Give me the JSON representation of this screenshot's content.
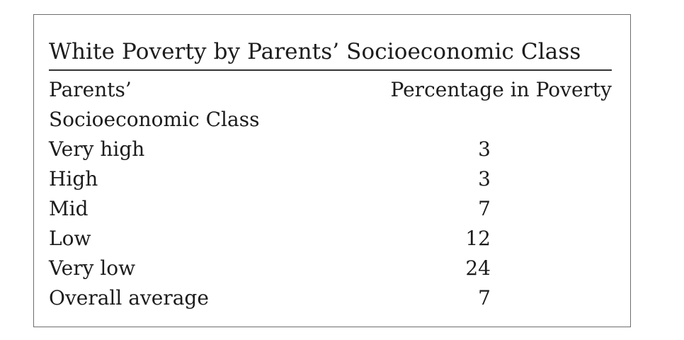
{
  "table": {
    "title": "White Poverty by Parents’ Socioeconomic Class",
    "header": {
      "col1_line1": "Parents’",
      "col1_line2": "Socioeconomic Class",
      "col2": "Percentage in Poverty"
    },
    "rows": [
      {
        "label": "Very high",
        "value": "3"
      },
      {
        "label": "High",
        "value": "3"
      },
      {
        "label": "Mid",
        "value": "7"
      },
      {
        "label": "Low",
        "value": "12"
      },
      {
        "label": "Very low",
        "value": "24"
      },
      {
        "label": "Overall average",
        "value": "7"
      }
    ]
  }
}
